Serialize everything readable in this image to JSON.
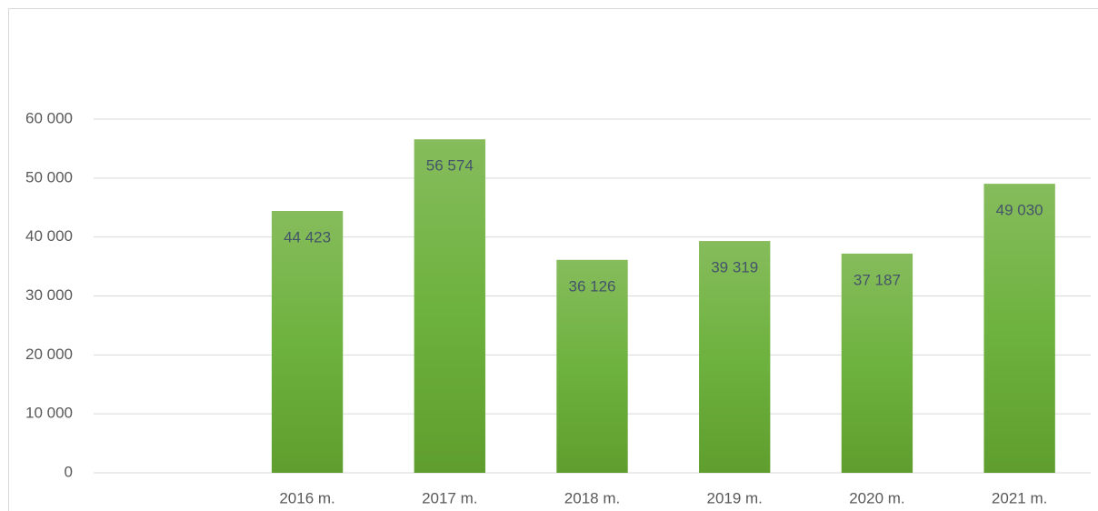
{
  "chart_data": {
    "type": "bar",
    "categories": [
      null,
      "2016 m.",
      "2017 m.",
      "2018 m.",
      "2019 m.",
      "2020 m.",
      "2021 m."
    ],
    "values": [
      null,
      44423,
      56574,
      36126,
      39319,
      37187,
      49030
    ],
    "value_labels": [
      null,
      "44 423",
      "56 574",
      "36 126",
      "39 319",
      "37 187",
      "49 030"
    ],
    "color": "#70ad47",
    "ylim": [
      0,
      60000
    ],
    "yticks": [
      0,
      {
        "value": 10000,
        "label": "10 000"
      },
      {
        "value": 20000,
        "label": "20 000"
      },
      {
        "value": 30000,
        "label": "30 000"
      },
      {
        "value": 40000,
        "label": "40 000"
      },
      {
        "value": 50000,
        "label": "50 000"
      },
      {
        "value": 60000,
        "label": "60 000"
      }
    ],
    "grid": true
  }
}
